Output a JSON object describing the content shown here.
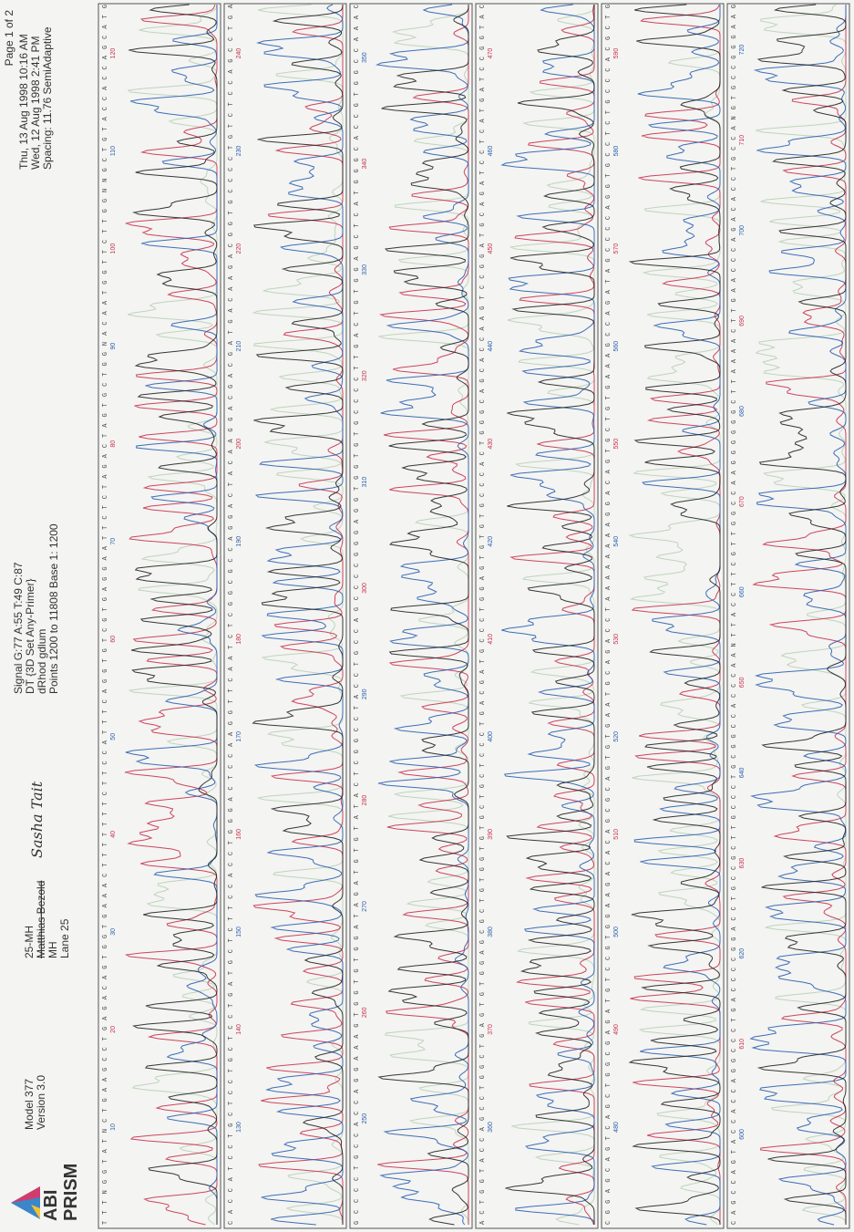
{
  "header": {
    "logo_top": "ABI",
    "logo_bottom": "PRISM",
    "instrument": [
      "Model 377",
      "Version 3.0"
    ],
    "sample": [
      "25-MH",
      "Matthias Bezold",
      "MH",
      "Lane 25"
    ],
    "handwritten": "Sasha Tait",
    "run": [
      "Signal G:77 A:55 T:49 C:87",
      "DT {3D Set Any-Primer}",
      "dRhod gdlum",
      "Points 1200 to 11808  Base 1: 1200"
    ],
    "page": "Page 1 of 2",
    "dates": [
      "Thu, 13 Aug 1998  10:16 AM",
      "Wed, 12 Aug 1998  2:41 PM",
      "Spacing: 11.76 SemiAdaptive"
    ]
  },
  "panels": [
    {
      "sequence": "TTTNGGTATNCTGAAGCCTGAGACAGTGGTGAAACTTTTTTTCTTCCATTTCAGGTGTCGTGAGGAATTCTCTAGACTAGTGCTGGNACAATGGTTCTTGGNNGCTGTACCACCAGCATG",
      "ticks": [
        10,
        20,
        30,
        40,
        50,
        60,
        70,
        80,
        90,
        100,
        110,
        120
      ]
    },
    {
      "sequence": "CACCATCCTGCTCCTGCTCCTGATGCTCTTCCACCTGGGACTCCAAGGTTCAATCTCGGCGCCAGGACTACAAGGACGACGATGACAAGACGGTGCCCCTGTCTCCAGCCTGA",
      "ticks": [
        130,
        140,
        150,
        160,
        170,
        180,
        190,
        200,
        210,
        220,
        230,
        240
      ]
    },
    {
      "sequence": "GCCCCTGCCACCAGGAAAGTGGTGTGGATAGATGTGTATACTCGGCCTACCTGCCAGCCCCGGGAGGTGGTGTGCCCCTTGACTGTGGAGCTCATGGGCACCGTGGCCAAAC",
      "ticks": [
        250,
        260,
        270,
        280,
        290,
        300,
        310,
        320,
        330,
        340,
        350
      ]
    },
    {
      "sequence": "ACTGGTACCAGCCTGGCTGAGTGTGGAGCGCTGTGGTGTGCTGCTCCCTGACGATGCCCTGGAGTGTGTGCCCACTGGGCAGCACCAAGTCCGGATGCAGATCCTCATGATCCGGTAC",
      "ticks": [
        360,
        370,
        380,
        390,
        400,
        410,
        420,
        430,
        440,
        450,
        460,
        470
      ]
    },
    {
      "sequence": "CGGAGCAGTCAGCTGGCGAGATGTCCGTGGAAGACACAGCGCAGTGTGAATGCAGACCTAAAAAAAAGGACAGTGCTGTGAAAGCCAGATAGCCCCAGGTGCCTCTGCCCACGCTG",
      "ticks": [
        480,
        490,
        500,
        510,
        520,
        530,
        540,
        550,
        560,
        570,
        580,
        590
      ]
    },
    {
      "sequence": "CAGCCAGTACCACCAGGCCCTGACCCCGGACCTGCCGCTTGCCCTGCGGCCACCCAANTTACCTTCGTTGGCCAAGGGGGGCTTAAAACTTGAACCCAGACACCTGCCANGTGCCGGGAAG",
      "ticks": [
        600,
        610,
        620,
        630,
        640,
        650,
        660,
        670,
        680,
        690,
        700,
        710,
        720
      ]
    }
  ]
}
